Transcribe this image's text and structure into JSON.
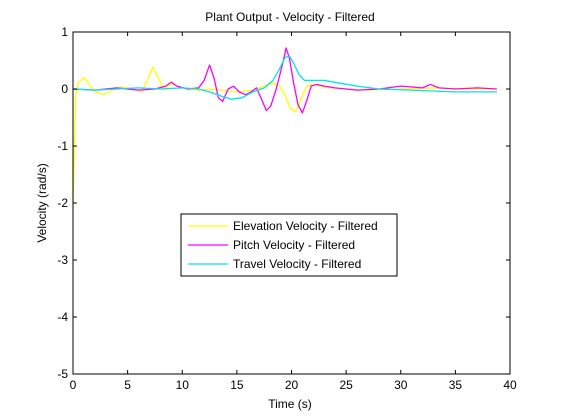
{
  "chart_data": {
    "type": "line",
    "title": "Plant Output - Velocity - Filtered",
    "xlabel": "Time (s)",
    "ylabel": "Velocity (rad/s)",
    "xlim": [
      0,
      40
    ],
    "ylim": [
      -5,
      1
    ],
    "xticks": [
      0,
      5,
      10,
      15,
      20,
      25,
      30,
      35,
      40
    ],
    "yticks": [
      1,
      0,
      -1,
      -2,
      -3,
      -4,
      -5
    ],
    "xtick_labels": [
      "0",
      "5",
      "10",
      "15",
      "20",
      "25",
      "30",
      "35",
      "40"
    ],
    "ytick_labels": [
      "1",
      "0",
      "-1",
      "-2",
      "-3",
      "-4",
      "-5"
    ],
    "grid": false,
    "legend_position": "lower-center",
    "series": [
      {
        "name": "Elevation Velocity - Filtered",
        "color": "#ffff00",
        "points": [
          [
            0,
            -2.0
          ],
          [
            0.1,
            -1.2
          ],
          [
            0.25,
            -0.1
          ],
          [
            0.5,
            0.12
          ],
          [
            1.0,
            0.2
          ],
          [
            1.5,
            0.08
          ],
          [
            2.0,
            -0.05
          ],
          [
            2.8,
            -0.1
          ],
          [
            3.6,
            -0.02
          ],
          [
            4.5,
            0.03
          ],
          [
            5.5,
            0.0
          ],
          [
            6.3,
            -0.05
          ],
          [
            6.8,
            0.15
          ],
          [
            7.3,
            0.38
          ],
          [
            7.8,
            0.2
          ],
          [
            8.3,
            -0.02
          ],
          [
            9.0,
            0.1
          ],
          [
            9.5,
            0.05
          ],
          [
            10.5,
            0.0
          ],
          [
            11.5,
            -0.02
          ],
          [
            12.5,
            0.0
          ],
          [
            13.5,
            -0.02
          ],
          [
            15.0,
            -0.05
          ],
          [
            16.5,
            -0.02
          ],
          [
            17.5,
            0.05
          ],
          [
            18.3,
            0.1
          ],
          [
            18.9,
            0.05
          ],
          [
            19.4,
            -0.1
          ],
          [
            19.9,
            -0.35
          ],
          [
            20.4,
            -0.4
          ],
          [
            20.9,
            -0.15
          ],
          [
            21.4,
            0.05
          ],
          [
            22.0,
            0.08
          ],
          [
            23.5,
            0.02
          ],
          [
            25.0,
            0.0
          ],
          [
            27.0,
            -0.02
          ],
          [
            30.0,
            0.0
          ],
          [
            33.0,
            0.02
          ],
          [
            36.0,
            0.0
          ],
          [
            38.8,
            0.0
          ]
        ]
      },
      {
        "name": "Pitch Velocity - Filtered",
        "color": "#ff00ff",
        "points": [
          [
            0,
            0.0
          ],
          [
            2.0,
            -0.02
          ],
          [
            4.0,
            0.02
          ],
          [
            6.0,
            -0.02
          ],
          [
            7.5,
            0.0
          ],
          [
            8.5,
            0.05
          ],
          [
            9.0,
            0.12
          ],
          [
            9.5,
            0.05
          ],
          [
            10.5,
            0.0
          ],
          [
            11.5,
            0.02
          ],
          [
            12.0,
            0.15
          ],
          [
            12.5,
            0.42
          ],
          [
            12.9,
            0.2
          ],
          [
            13.3,
            -0.15
          ],
          [
            13.7,
            -0.22
          ],
          [
            14.2,
            0.0
          ],
          [
            14.7,
            0.05
          ],
          [
            15.2,
            -0.05
          ],
          [
            15.8,
            -0.1
          ],
          [
            16.3,
            -0.05
          ],
          [
            16.8,
            0.02
          ],
          [
            17.3,
            -0.2
          ],
          [
            17.7,
            -0.38
          ],
          [
            18.1,
            -0.3
          ],
          [
            18.6,
            0.0
          ],
          [
            19.2,
            0.45
          ],
          [
            19.5,
            0.72
          ],
          [
            19.8,
            0.55
          ],
          [
            20.2,
            0.1
          ],
          [
            20.6,
            -0.28
          ],
          [
            21.0,
            -0.42
          ],
          [
            21.4,
            -0.2
          ],
          [
            21.8,
            0.05
          ],
          [
            22.3,
            0.08
          ],
          [
            23.0,
            0.05
          ],
          [
            24.0,
            0.02
          ],
          [
            26.0,
            -0.02
          ],
          [
            28.0,
            0.0
          ],
          [
            30.0,
            0.05
          ],
          [
            32.0,
            0.02
          ],
          [
            32.7,
            0.08
          ],
          [
            33.5,
            0.02
          ],
          [
            35.0,
            0.0
          ],
          [
            37.0,
            0.02
          ],
          [
            38.8,
            0.0
          ]
        ]
      },
      {
        "name": "Travel Velocity - Filtered",
        "color": "#00e5e5",
        "points": [
          [
            0,
            0.0
          ],
          [
            2.0,
            -0.02
          ],
          [
            4.0,
            0.0
          ],
          [
            6.0,
            0.02
          ],
          [
            8.0,
            0.0
          ],
          [
            10.0,
            0.02
          ],
          [
            11.5,
            0.0
          ],
          [
            12.5,
            -0.05
          ],
          [
            13.5,
            -0.12
          ],
          [
            14.5,
            -0.18
          ],
          [
            15.5,
            -0.15
          ],
          [
            16.5,
            -0.05
          ],
          [
            17.5,
            0.02
          ],
          [
            18.3,
            0.15
          ],
          [
            18.9,
            0.35
          ],
          [
            19.4,
            0.55
          ],
          [
            19.8,
            0.58
          ],
          [
            20.2,
            0.45
          ],
          [
            20.7,
            0.25
          ],
          [
            21.2,
            0.15
          ],
          [
            22.0,
            0.15
          ],
          [
            23.0,
            0.15
          ],
          [
            24.5,
            0.1
          ],
          [
            26.0,
            0.05
          ],
          [
            28.0,
            0.0
          ],
          [
            31.0,
            -0.02
          ],
          [
            35.0,
            -0.05
          ],
          [
            38.8,
            -0.05
          ]
        ]
      }
    ]
  }
}
